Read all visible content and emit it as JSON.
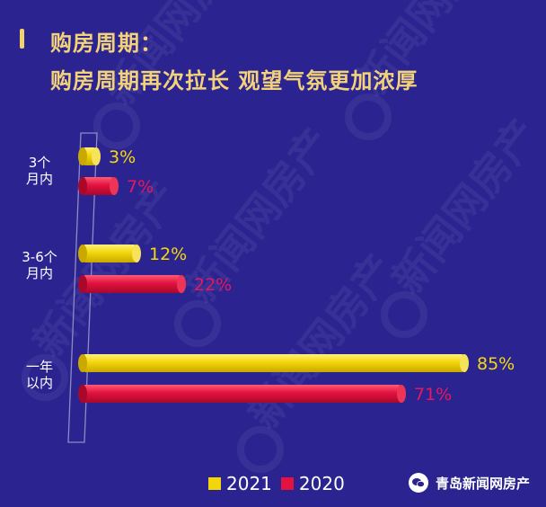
{
  "title": {
    "line1": "购房周期：",
    "line2": "购房周期再次拉长 观望气氛更加浓厚"
  },
  "watermark": "新闻网房产",
  "brand": {
    "label": "青岛新闻网房产"
  },
  "colors": {
    "background": "#2b2490",
    "series_2021": "#f2d60a",
    "series_2020": "#e3123f",
    "label_2021": "#f5d90f",
    "label_2020": "#e8175d",
    "title": "#f3d27a"
  },
  "chart_data": {
    "type": "bar",
    "orientation": "horizontal",
    "categories": [
      "3个\n月内",
      "3-6个\n月内",
      "一年\n以内"
    ],
    "series": [
      {
        "name": "2021",
        "values": [
          3,
          12,
          85
        ],
        "labels": [
          "3%",
          "12%",
          "85%"
        ]
      },
      {
        "name": "2020",
        "values": [
          7,
          22,
          71
        ],
        "labels": [
          "7%",
          "22%",
          "71%"
        ]
      }
    ],
    "xlim": [
      0,
      100
    ],
    "grid": false,
    "legend": "bottom"
  }
}
